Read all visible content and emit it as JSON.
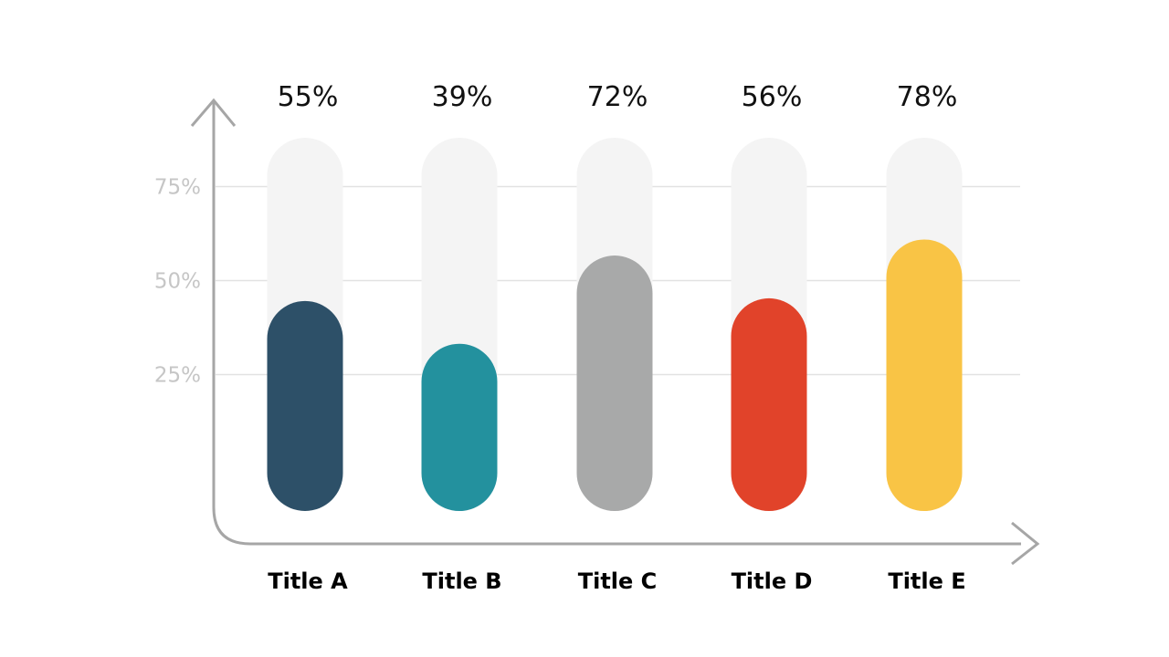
{
  "chart_data": {
    "type": "bar",
    "categories": [
      "Title A",
      "Title B",
      "Title C",
      "Title D",
      "Title E"
    ],
    "values": [
      55,
      39,
      72,
      56,
      78
    ],
    "value_labels": [
      "55%",
      "39%",
      "72%",
      "56%",
      "78%"
    ],
    "colors": [
      "#2d5068",
      "#23919e",
      "#a8a9a9",
      "#e1432a",
      "#f9c445"
    ],
    "track_color": "#f4f4f4",
    "y_ticks": [
      {
        "value": 25,
        "label": "25%"
      },
      {
        "value": 50,
        "label": "50%"
      },
      {
        "value": 75,
        "label": "75%"
      }
    ],
    "ylim": [
      0,
      100
    ],
    "grid": true,
    "axis_color": "#a6a6a6",
    "title": "",
    "xlabel": "",
    "ylabel": ""
  }
}
